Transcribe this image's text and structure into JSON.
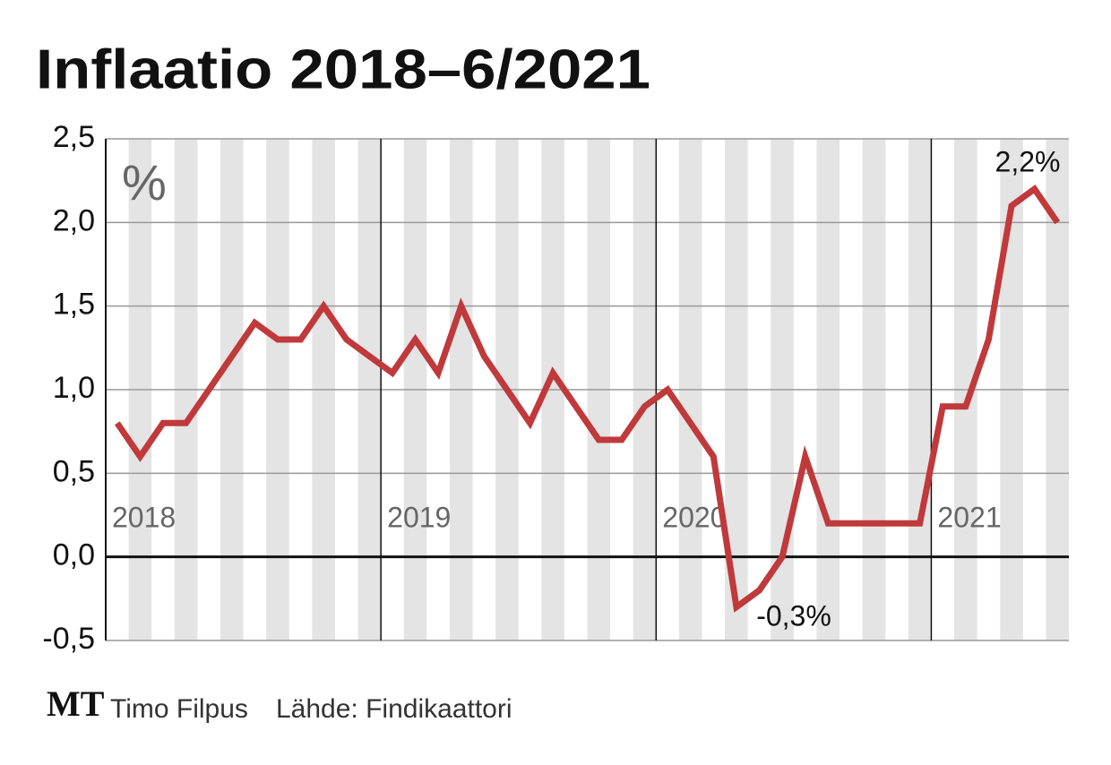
{
  "chart_data": {
    "type": "line",
    "title": "Inflaatio 2018–6/2021",
    "y_unit": "%",
    "categories": [
      "2018",
      null,
      null,
      null,
      null,
      null,
      null,
      null,
      null,
      null,
      null,
      null,
      "2019",
      null,
      null,
      null,
      null,
      null,
      null,
      null,
      null,
      null,
      null,
      null,
      "2020",
      null,
      null,
      null,
      null,
      null,
      null,
      null,
      null,
      null,
      null,
      null,
      "2021",
      null,
      null,
      null,
      null,
      null
    ],
    "series": [
      {
        "name": "Inflaatio",
        "color": "#c0393b",
        "values": [
          0.8,
          0.6,
          0.8,
          0.8,
          1.0,
          1.2,
          1.4,
          1.3,
          1.3,
          1.5,
          1.3,
          1.2,
          1.1,
          1.3,
          1.1,
          1.5,
          1.2,
          1.0,
          0.8,
          1.1,
          0.9,
          0.7,
          0.7,
          0.9,
          1.0,
          0.8,
          0.6,
          -0.3,
          -0.2,
          0.0,
          0.6,
          0.2,
          0.2,
          0.2,
          0.2,
          0.2,
          0.9,
          0.9,
          1.3,
          2.1,
          2.2,
          2.0
        ]
      }
    ],
    "ylim": [
      -0.5,
      2.5
    ],
    "yticks": [
      {
        "value": -0.5,
        "label": "-0,5"
      },
      {
        "value": 0,
        "label": "0,0"
      },
      {
        "value": 0.5,
        "label": "0,5"
      },
      {
        "value": 1,
        "label": "1,0"
      },
      {
        "value": 1.5,
        "label": "1,5"
      },
      {
        "value": 2,
        "label": "2,0"
      },
      {
        "value": 2.5,
        "label": "2,5"
      }
    ],
    "grid": true,
    "annotations": [
      "2,2%",
      "-0,3%"
    ],
    "footer": {
      "logo": "MT",
      "author": "Timo Filpus",
      "source": "Lähde: Findikaattori"
    }
  }
}
